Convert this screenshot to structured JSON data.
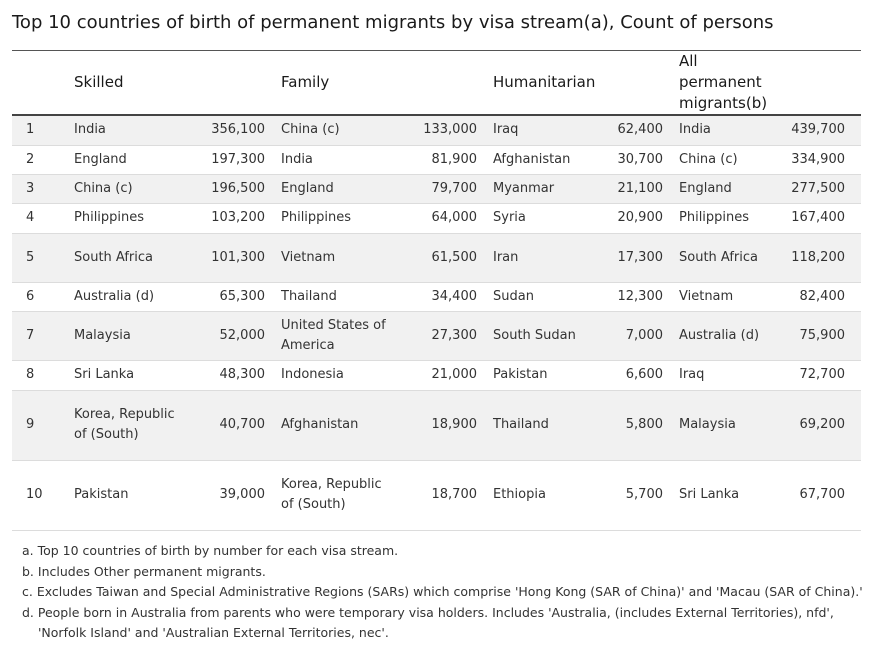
{
  "title": "Top 10 countries of birth of permanent migrants by visa stream(a), Count of persons",
  "table": {
    "headers": [
      "",
      "Skilled",
      "",
      "Family",
      "",
      "Humanitarian",
      "",
      "All permanent migrants(b)",
      ""
    ],
    "rows": [
      [
        "1",
        "India",
        "356,100",
        "China (c)",
        "133,000",
        "Iraq",
        "62,400",
        "India",
        "439,700"
      ],
      [
        "2",
        "England",
        "197,300",
        "India",
        "81,900",
        "Afghanistan",
        "30,700",
        "China (c)",
        "334,900"
      ],
      [
        "3",
        "China (c)",
        "196,500",
        "England",
        "79,700",
        "Myanmar",
        "21,100",
        "England",
        "277,500"
      ],
      [
        "4",
        "Philippines",
        "103,200",
        "Philippines",
        "64,000",
        "Syria",
        "20,900",
        "Philippines",
        "167,400"
      ],
      [
        "5",
        "South Africa",
        "101,300",
        "Vietnam",
        "61,500",
        "Iran",
        "17,300",
        "South Africa",
        "118,200"
      ],
      [
        "6",
        "Australia (d)",
        "65,300",
        "Thailand",
        "34,400",
        "Sudan",
        "12,300",
        "Vietnam",
        "82,400"
      ],
      [
        "7",
        "Malaysia",
        "52,000",
        "United States of America",
        "27,300",
        "South Sudan",
        "7,000",
        "Australia (d)",
        "75,900"
      ],
      [
        "8",
        "Sri Lanka",
        "48,300",
        "Indonesia",
        "21,000",
        "Pakistan",
        "6,600",
        "Iraq",
        "72,700"
      ],
      [
        "9",
        "Korea, Republic of (South)",
        "40,700",
        "Afghanistan",
        "18,900",
        "Thailand",
        "5,800",
        "Malaysia",
        "69,200"
      ],
      [
        "10",
        "Pakistan",
        "39,000",
        "Korea, Republic of (South)",
        "18,700",
        "Ethiopia",
        "5,700",
        "Sri Lanka",
        "67,700"
      ]
    ]
  },
  "footnotes": [
    "a. Top 10 countries of birth by number for each visa stream.",
    "b. Includes Other permanent migrants.",
    "c. Excludes Taiwan and Special Administrative Regions (SARs) which comprise 'Hong Kong (SAR of China)' and 'Macau (SAR of China).'",
    "d. People born in Australia from parents who were temporary visa holders. Includes 'Australia, (includes External Territories), nfd',",
    "'Norfolk Island' and 'Australian External Territories, nec'."
  ]
}
